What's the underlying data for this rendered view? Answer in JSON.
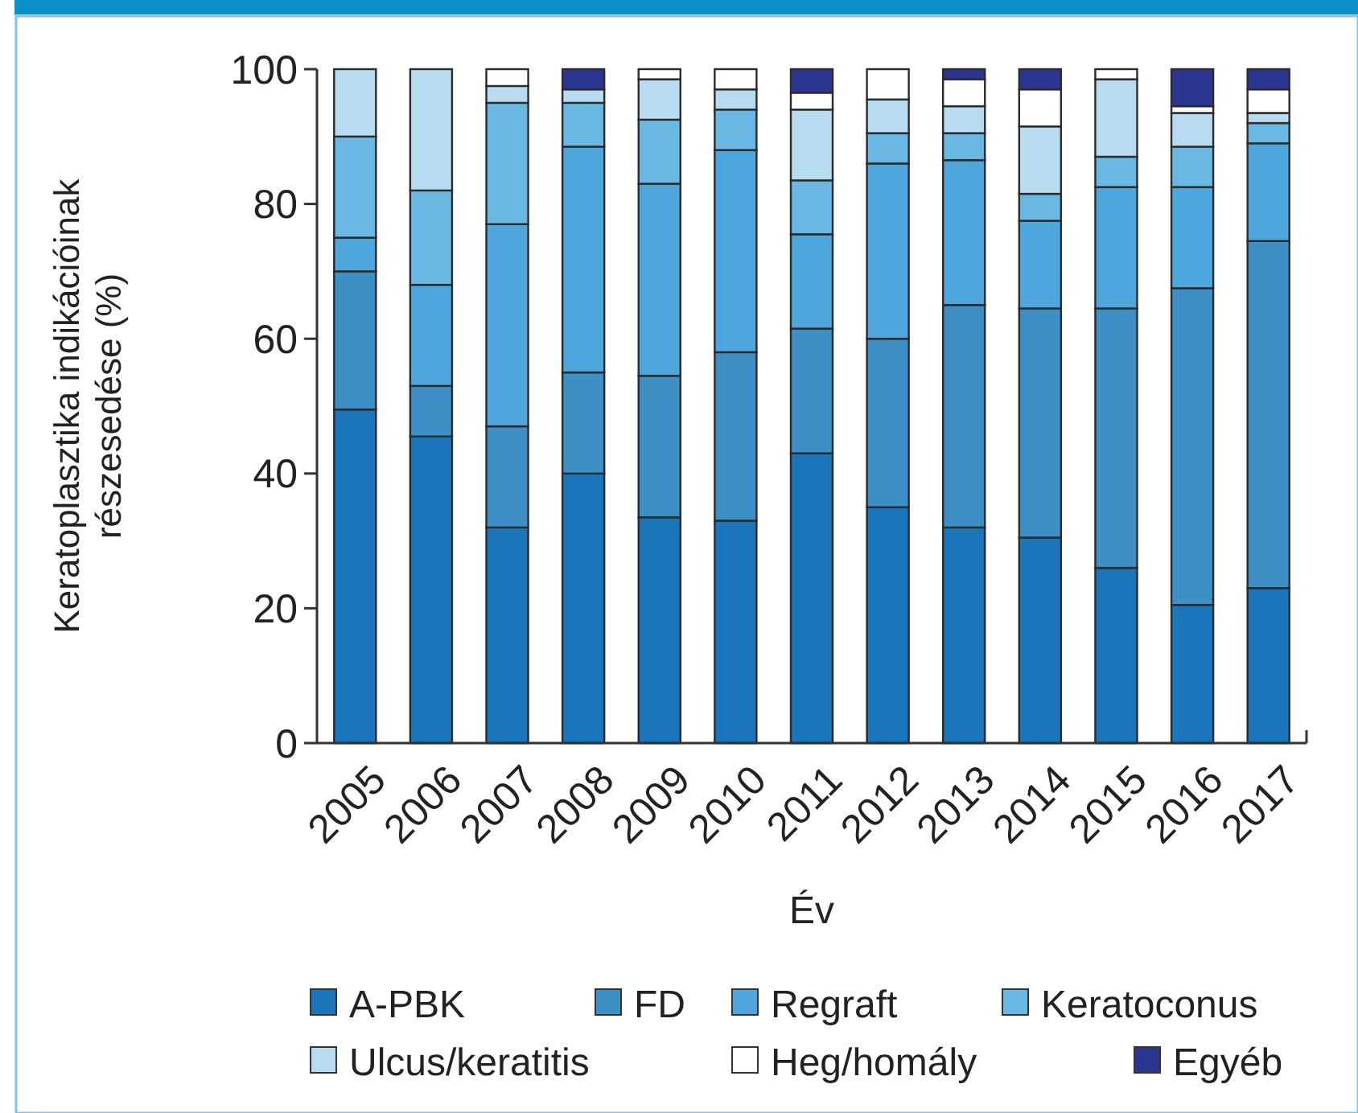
{
  "chart_data": {
    "type": "bar",
    "stacked": true,
    "xlabel": "Év",
    "ylabel": "Keratoplasztika indikációinak\nrészesedése (%)",
    "categories": [
      "2005",
      "2006",
      "2007",
      "2008",
      "2009",
      "2010",
      "2011",
      "2012",
      "2013",
      "2014",
      "2015",
      "2016",
      "2017"
    ],
    "ylim": [
      0,
      100
    ],
    "yticks": [
      0,
      20,
      40,
      60,
      80,
      100
    ],
    "grid": false,
    "legend": "bottom",
    "series": [
      {
        "name": "A-PBK",
        "color": "#1b75bb",
        "values": [
          49.5,
          45.5,
          32,
          40,
          33.5,
          33,
          43,
          35,
          32,
          30.5,
          26,
          20.5,
          23
        ]
      },
      {
        "name": "FD",
        "color": "#3d8fc6",
        "values": [
          20.5,
          7.5,
          15,
          15,
          21,
          25,
          18.5,
          25,
          33,
          34,
          38.5,
          47,
          51.5
        ]
      },
      {
        "name": "Regraft",
        "color": "#4fa6dc",
        "values": [
          5,
          15,
          30,
          33.5,
          28.5,
          30,
          14,
          26,
          21.5,
          13,
          18,
          15,
          14.5
        ]
      },
      {
        "name": "Keratoconus",
        "color": "#69b8e4",
        "values": [
          15,
          14,
          18,
          6.5,
          9.5,
          6,
          8,
          4.5,
          4,
          4,
          4.5,
          6,
          3
        ]
      },
      {
        "name": "Ulcus/keratitis",
        "color": "#b8dbf0",
        "values": [
          10,
          18,
          2.5,
          2,
          6,
          3,
          10.5,
          5,
          4,
          10,
          11.5,
          5,
          1.5
        ]
      },
      {
        "name": "Heg/homály",
        "color": "#ffffff",
        "values": [
          0,
          0,
          2.5,
          0,
          1.5,
          3,
          2.5,
          4.5,
          4,
          5.5,
          1.5,
          1,
          3.5
        ]
      },
      {
        "name": "Egyéb",
        "color": "#2a3590",
        "values": [
          0,
          0,
          0,
          3,
          0,
          0,
          3.5,
          0,
          1.5,
          3,
          0,
          5.5,
          3
        ]
      }
    ]
  }
}
